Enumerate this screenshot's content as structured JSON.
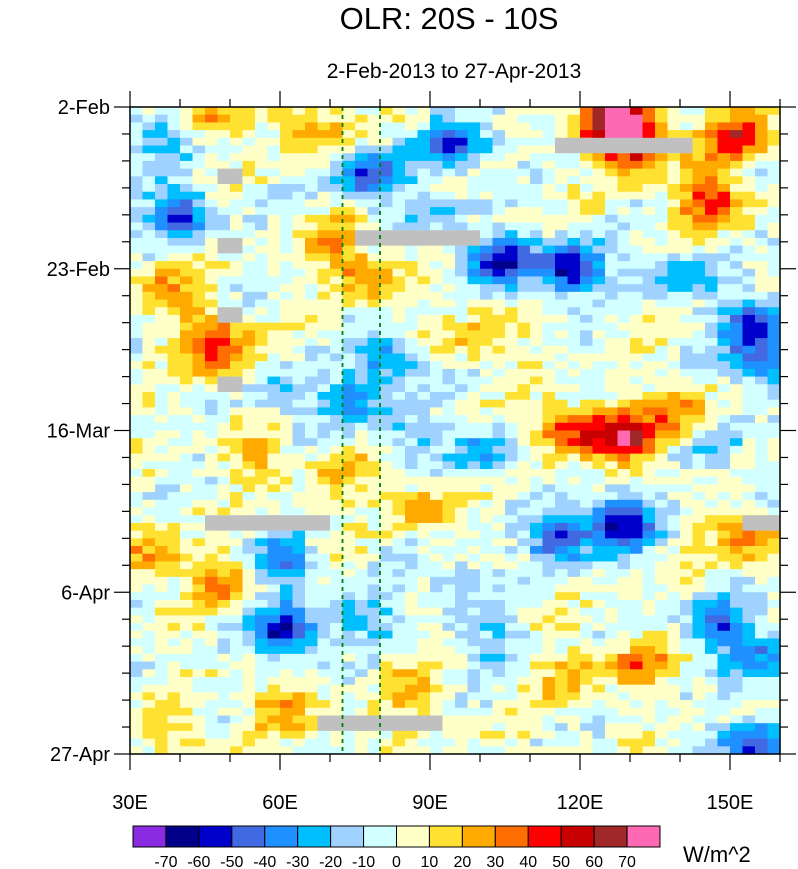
{
  "chart_data": {
    "type": "heatmap",
    "title": "OLR: 20S - 10S",
    "subtitle": "2-Feb-2013 to 27-Apr-2013",
    "xlabel": "",
    "ylabel": "",
    "x_range": [
      30,
      160
    ],
    "x_ticks": [
      {
        "value": 30,
        "label": "30E"
      },
      {
        "value": 60,
        "label": "60E"
      },
      {
        "value": 90,
        "label": "90E"
      },
      {
        "value": 120,
        "label": "120E"
      },
      {
        "value": 150,
        "label": "150E"
      }
    ],
    "y_range_days": [
      0,
      84
    ],
    "y_ticks": [
      {
        "value": 0,
        "label": "2-Feb"
      },
      {
        "value": 21,
        "label": "23-Feb"
      },
      {
        "value": 42,
        "label": "16-Mar"
      },
      {
        "value": 63,
        "label": "6-Apr"
      },
      {
        "value": 84,
        "label": "27-Apr"
      }
    ],
    "reference_lines_lon": [
      72.5,
      80
    ],
    "colorbar": {
      "units": "W/m^2",
      "levels": [
        -70,
        -60,
        -50,
        -40,
        -30,
        -20,
        -10,
        0,
        10,
        20,
        30,
        40,
        50,
        60,
        70
      ],
      "colors": [
        "#8a2be2",
        "#00008b",
        "#0000cd",
        "#4169e1",
        "#1e90ff",
        "#00bfff",
        "#a0d2ff",
        "#d2ffff",
        "#ffffc8",
        "#ffe132",
        "#ffaa00",
        "#ff6e00",
        "#ff0000",
        "#c80000",
        "#a02828",
        "#ff69b4"
      ]
    },
    "anomaly_features": [
      {
        "lon": 127,
        "day": 2,
        "value": 75
      },
      {
        "lon": 131,
        "day": 5,
        "value": 55
      },
      {
        "lon": 151,
        "day": 4,
        "value": 50
      },
      {
        "lon": 146,
        "day": 12,
        "value": 45
      },
      {
        "lon": 45,
        "day": 1,
        "value": 25
      },
      {
        "lon": 66,
        "day": 3,
        "value": 30
      },
      {
        "lon": 95,
        "day": 5,
        "value": -50
      },
      {
        "lon": 78,
        "day": 9,
        "value": -50
      },
      {
        "lon": 91,
        "day": 14,
        "value": -20
      },
      {
        "lon": 40,
        "day": 14,
        "value": -50
      },
      {
        "lon": 36,
        "day": 4,
        "value": -30
      },
      {
        "lon": 118,
        "day": 21,
        "value": -65
      },
      {
        "lon": 104,
        "day": 20,
        "value": -60
      },
      {
        "lon": 140,
        "day": 22,
        "value": -30
      },
      {
        "lon": 155,
        "day": 28,
        "value": -45
      },
      {
        "lon": 157,
        "day": 33,
        "value": -50
      },
      {
        "lon": 36,
        "day": 23,
        "value": 25
      },
      {
        "lon": 46,
        "day": 29,
        "value": 35
      },
      {
        "lon": 48,
        "day": 33,
        "value": 30
      },
      {
        "lon": 71,
        "day": 18,
        "value": 25
      },
      {
        "lon": 78,
        "day": 22,
        "value": 30
      },
      {
        "lon": 82,
        "day": 33,
        "value": -35
      },
      {
        "lon": 75,
        "day": 38,
        "value": -30
      },
      {
        "lon": 60,
        "day": 37,
        "value": -25
      },
      {
        "lon": 100,
        "day": 30,
        "value": 20
      },
      {
        "lon": 129,
        "day": 43,
        "value": 55
      },
      {
        "lon": 118,
        "day": 42,
        "value": 45
      },
      {
        "lon": 140,
        "day": 40,
        "value": 35
      },
      {
        "lon": 101,
        "day": 45,
        "value": -30
      },
      {
        "lon": 148,
        "day": 44,
        "value": -25
      },
      {
        "lon": 128,
        "day": 54,
        "value": -65
      },
      {
        "lon": 116,
        "day": 56,
        "value": -50
      },
      {
        "lon": 154,
        "day": 56,
        "value": 35
      },
      {
        "lon": 88,
        "day": 52,
        "value": 25
      },
      {
        "lon": 35,
        "day": 58,
        "value": 30
      },
      {
        "lon": 49,
        "day": 62,
        "value": 30
      },
      {
        "lon": 60,
        "day": 59,
        "value": -40
      },
      {
        "lon": 61,
        "day": 68,
        "value": -60
      },
      {
        "lon": 76,
        "day": 66,
        "value": -25
      },
      {
        "lon": 95,
        "day": 62,
        "value": -20
      },
      {
        "lon": 103,
        "day": 70,
        "value": -20
      },
      {
        "lon": 132,
        "day": 72,
        "value": 30
      },
      {
        "lon": 118,
        "day": 74,
        "value": 25
      },
      {
        "lon": 148,
        "day": 67,
        "value": -45
      },
      {
        "lon": 156,
        "day": 72,
        "value": -35
      },
      {
        "lon": 60,
        "day": 78,
        "value": 25
      },
      {
        "lon": 86,
        "day": 76,
        "value": 20
      },
      {
        "lon": 155,
        "day": 83,
        "value": -50
      },
      {
        "lon": 40,
        "day": 81,
        "value": 15
      },
      {
        "lon": 72,
        "day": 48,
        "value": 20
      },
      {
        "lon": 85,
        "day": 42,
        "value": -20
      },
      {
        "lon": 55,
        "day": 45,
        "value": 20
      }
    ],
    "missing_data": [
      {
        "lon0": 47.5,
        "lon1": 52.5,
        "day0": 8,
        "day1": 10
      },
      {
        "lon0": 47.5,
        "lon1": 52.5,
        "day0": 17,
        "day1": 19
      },
      {
        "lon0": 47.5,
        "lon1": 52.5,
        "day0": 26,
        "day1": 28
      },
      {
        "lon0": 47.5,
        "lon1": 52.5,
        "day0": 35,
        "day1": 37
      },
      {
        "lon0": 75,
        "lon1": 100,
        "day0": 16,
        "day1": 18
      },
      {
        "lon0": 115,
        "lon1": 142.5,
        "day0": 4,
        "day1": 6
      },
      {
        "lon0": 45,
        "lon1": 70,
        "day0": 53,
        "day1": 55
      },
      {
        "lon0": 152.5,
        "lon1": 160,
        "day0": 53,
        "day1": 55
      },
      {
        "lon0": 67.5,
        "lon1": 92.5,
        "day0": 79,
        "day1": 81
      }
    ]
  }
}
